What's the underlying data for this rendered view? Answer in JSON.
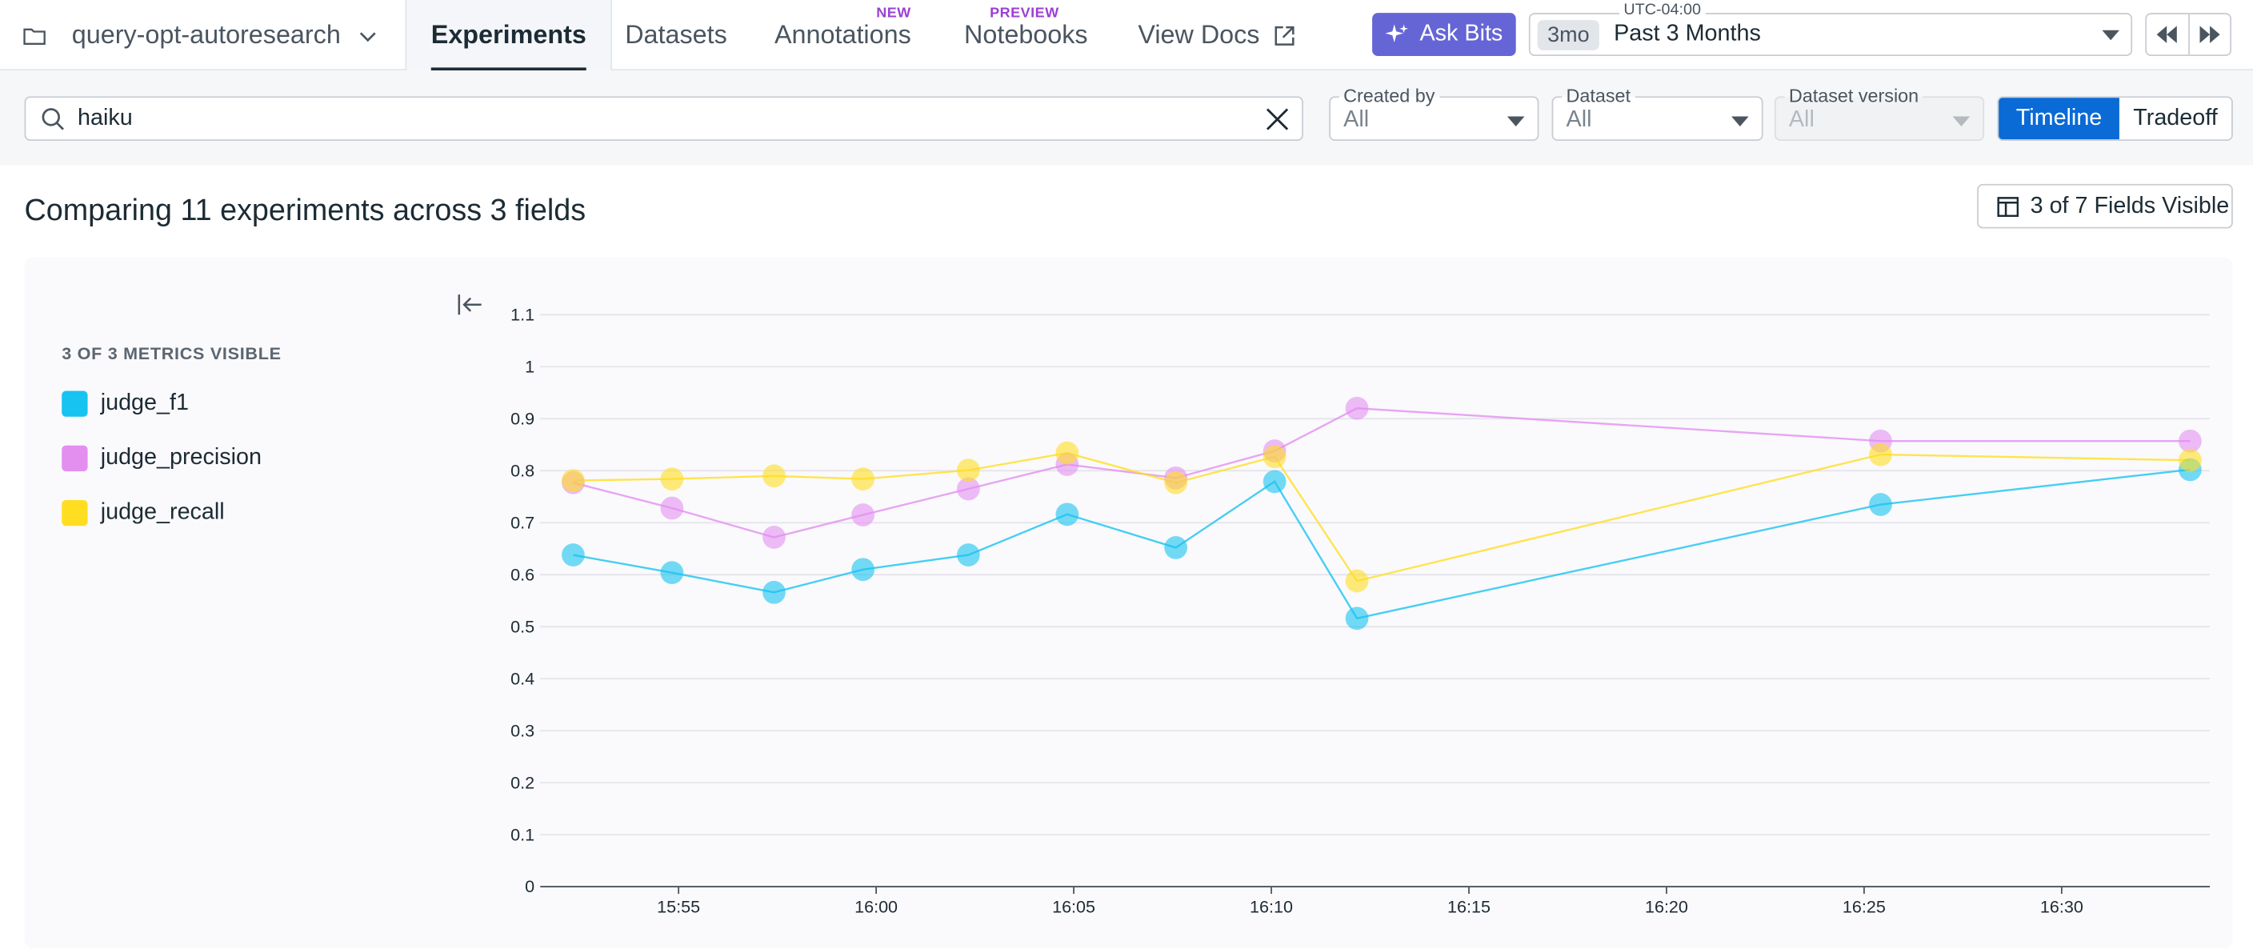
{
  "header": {
    "project": "query-opt-autoresearch",
    "tabs": [
      {
        "label": "Experiments",
        "badge": ""
      },
      {
        "label": "Datasets",
        "badge": ""
      },
      {
        "label": "Annotations",
        "badge": "NEW"
      },
      {
        "label": "Notebooks",
        "badge": "PREVIEW"
      },
      {
        "label": "View Docs",
        "badge": ""
      }
    ],
    "ask_bits": "Ask Bits",
    "time": {
      "timezone": "UTC-04:00",
      "short": "3mo",
      "label": "Past 3 Months"
    }
  },
  "filters": {
    "search_value": "haiku",
    "created_by": {
      "label": "Created by",
      "value": "All"
    },
    "dataset": {
      "label": "Dataset",
      "value": "All"
    },
    "dataset_version": {
      "label": "Dataset version",
      "value": "All"
    },
    "view_toggle": [
      "Timeline",
      "Tradeoff"
    ]
  },
  "content": {
    "heading": "Comparing 11 experiments across 3 fields",
    "fields_visible": "3 of 7 Fields Visible",
    "legend_title": "3 OF 3 METRICS VISIBLE"
  },
  "colors": {
    "accent": "#0a6ad6",
    "ask_bits": "#6565d6",
    "badge": "#9b3fd6"
  },
  "chart_data": {
    "type": "line",
    "x_unit": "minutes-of-day (display HH:MM)",
    "x": [
      "15:52:20",
      "15:54:50",
      "15:57:25",
      "15:59:40",
      "16:02:20",
      "16:04:50",
      "16:07:35",
      "16:10:05",
      "16:12:10",
      "16:25:25",
      "16:33:15"
    ],
    "xticks": [
      "15:55",
      "16:00",
      "16:05",
      "16:10",
      "16:15",
      "16:20",
      "16:25",
      "16:30"
    ],
    "yticks": [
      "0",
      "0.1",
      "0.2",
      "0.3",
      "0.4",
      "0.5",
      "0.6",
      "0.7",
      "0.8",
      "0.9",
      "1",
      "1.1"
    ],
    "ylim": [
      0,
      1.1
    ],
    "xlim": [
      "15:51:30",
      "16:33:45"
    ],
    "grid": true,
    "legend": "left",
    "series": [
      {
        "name": "judge_f1",
        "color": "#17c3f0",
        "values": [
          0.638,
          0.604,
          0.566,
          0.61,
          0.638,
          0.716,
          0.652,
          0.779,
          0.516,
          0.735,
          0.802
        ]
      },
      {
        "name": "judge_precision",
        "color": "#e28ff0",
        "values": [
          0.777,
          0.728,
          0.672,
          0.715,
          0.765,
          0.812,
          0.786,
          0.838,
          0.92,
          0.857,
          0.857
        ]
      },
      {
        "name": "judge_recall",
        "color": "#ffde21",
        "values": [
          0.781,
          0.784,
          0.79,
          0.784,
          0.801,
          0.834,
          0.777,
          0.827,
          0.588,
          0.831,
          0.82
        ]
      }
    ]
  }
}
